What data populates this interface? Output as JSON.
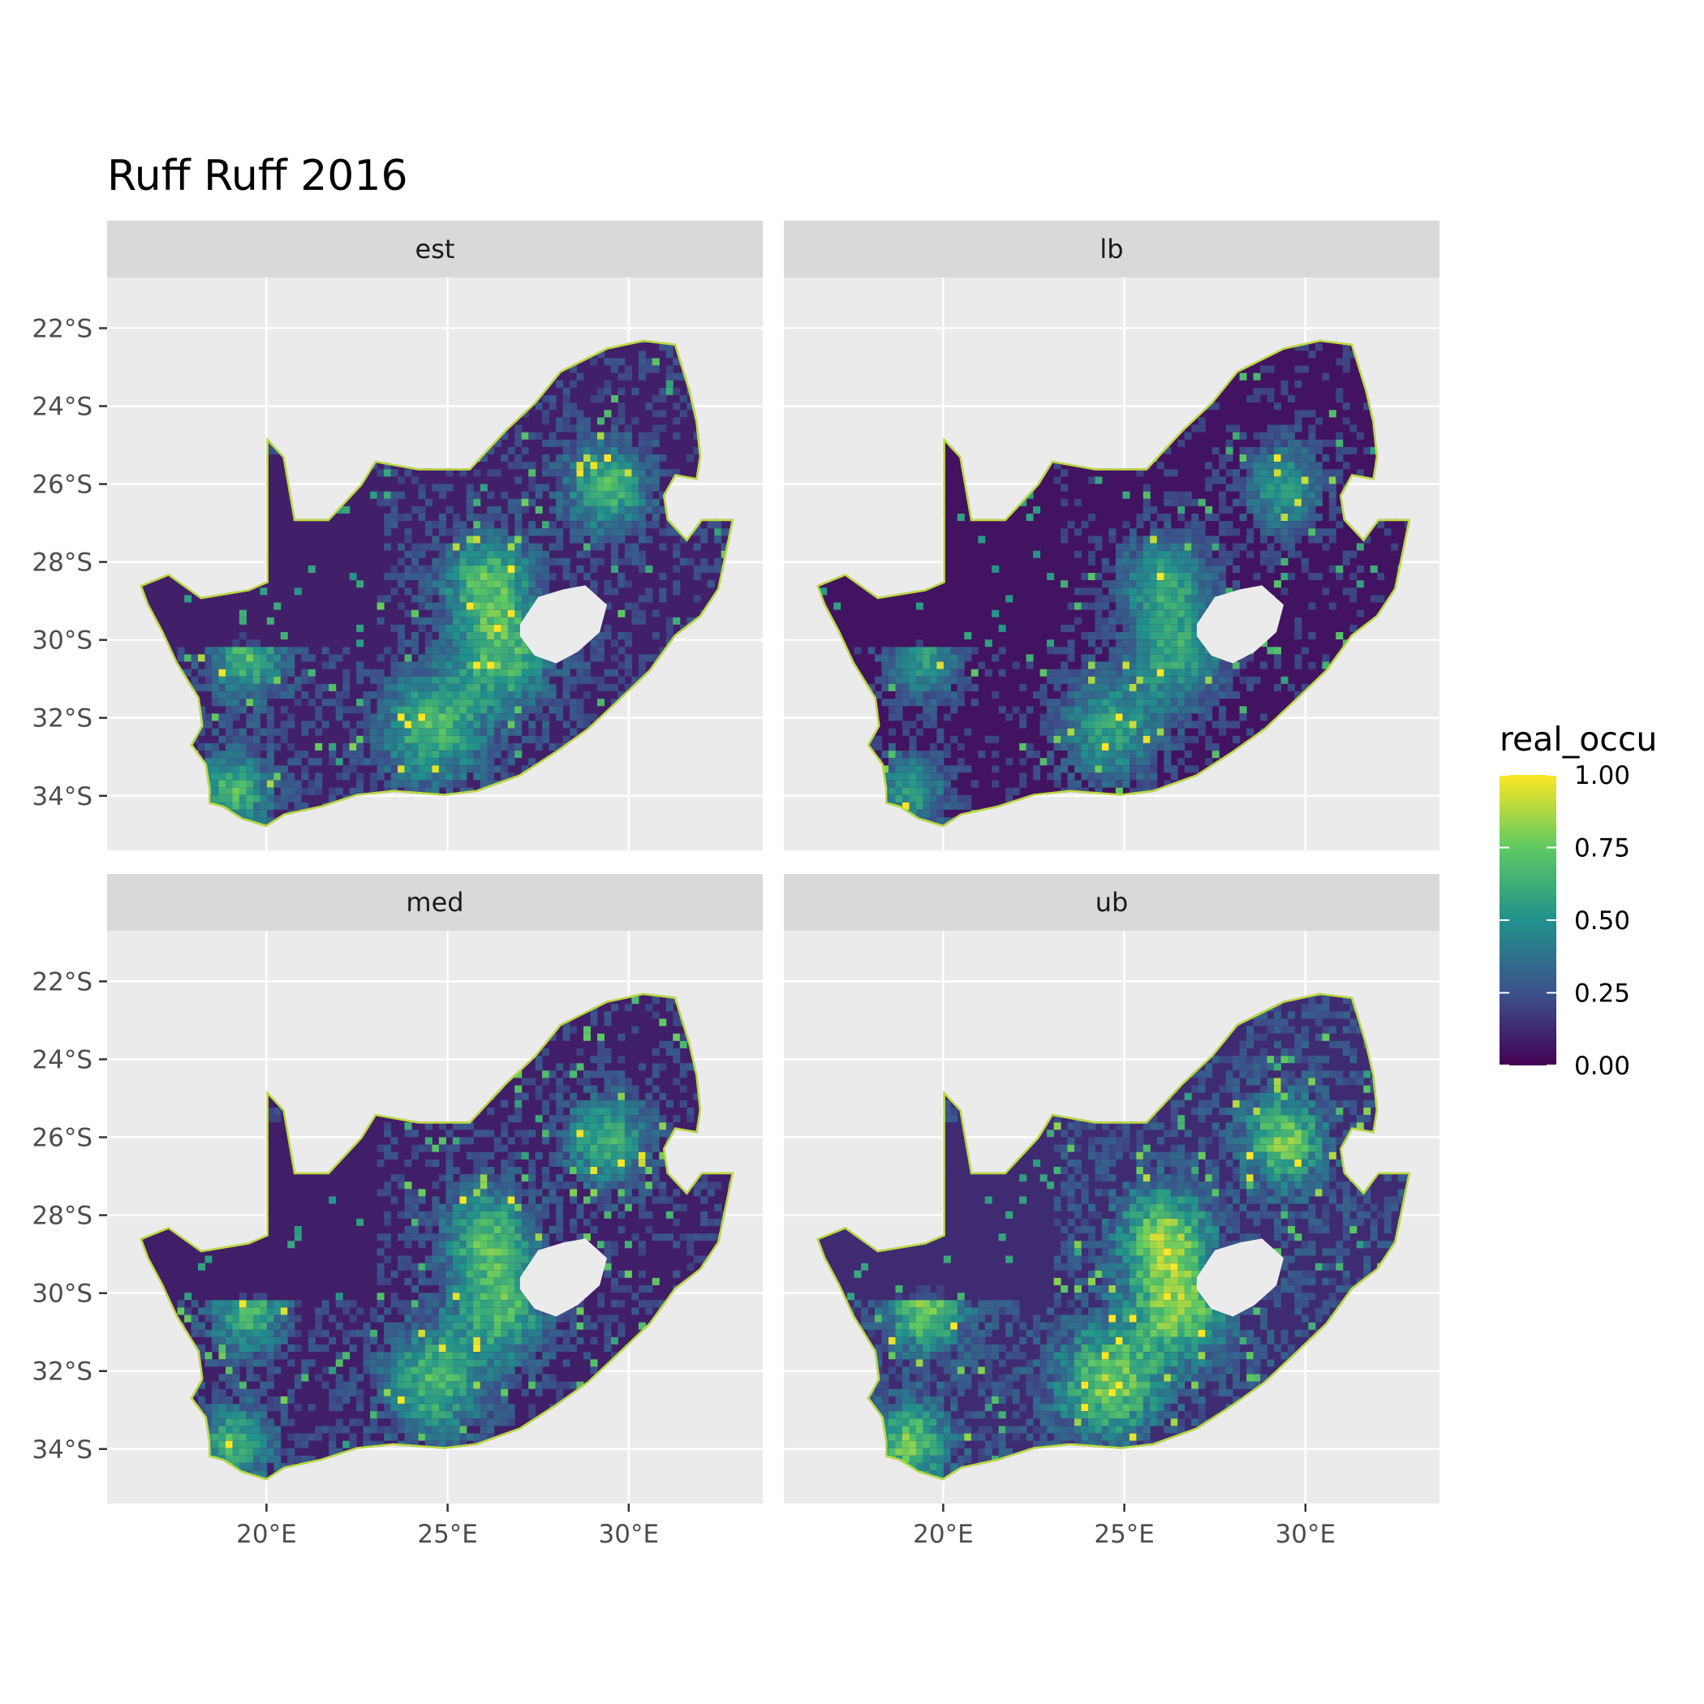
{
  "title": "Ruff Ruff 2016",
  "panels": [
    {
      "label": "est",
      "level": 0.38
    },
    {
      "label": "lb",
      "level": 0.22
    },
    {
      "label": "med",
      "level": 0.36
    },
    {
      "label": "ub",
      "level": 0.52
    }
  ],
  "x_ticks": [
    {
      "value": 20,
      "label": "20°E"
    },
    {
      "value": 25,
      "label": "25°E"
    },
    {
      "value": 30,
      "label": "30°E"
    }
  ],
  "y_ticks": [
    {
      "value": -22,
      "label": "22°S"
    },
    {
      "value": -24,
      "label": "24°S"
    },
    {
      "value": -26,
      "label": "26°S"
    },
    {
      "value": -28,
      "label": "28°S"
    },
    {
      "value": -30,
      "label": "30°S"
    },
    {
      "value": -32,
      "label": "32°S"
    },
    {
      "value": -34,
      "label": "34°S"
    }
  ],
  "xlim": [
    15.6,
    33.7
  ],
  "ylim": [
    -35.4,
    -20.7
  ],
  "legend": {
    "title": "real_occu",
    "ticks": [
      {
        "value": 1.0,
        "label": "1.00"
      },
      {
        "value": 0.75,
        "label": "0.75"
      },
      {
        "value": 0.5,
        "label": "0.50"
      },
      {
        "value": 0.25,
        "label": "0.25"
      },
      {
        "value": 0.0,
        "label": "0.00"
      }
    ],
    "colors": [
      "#440154",
      "#3b528b",
      "#21918c",
      "#5ec962",
      "#fde725"
    ]
  },
  "colors": {
    "panel_bg": "#ebebeb",
    "grid": "#ffffff",
    "strip_bg": "#d9d9d9"
  }
}
